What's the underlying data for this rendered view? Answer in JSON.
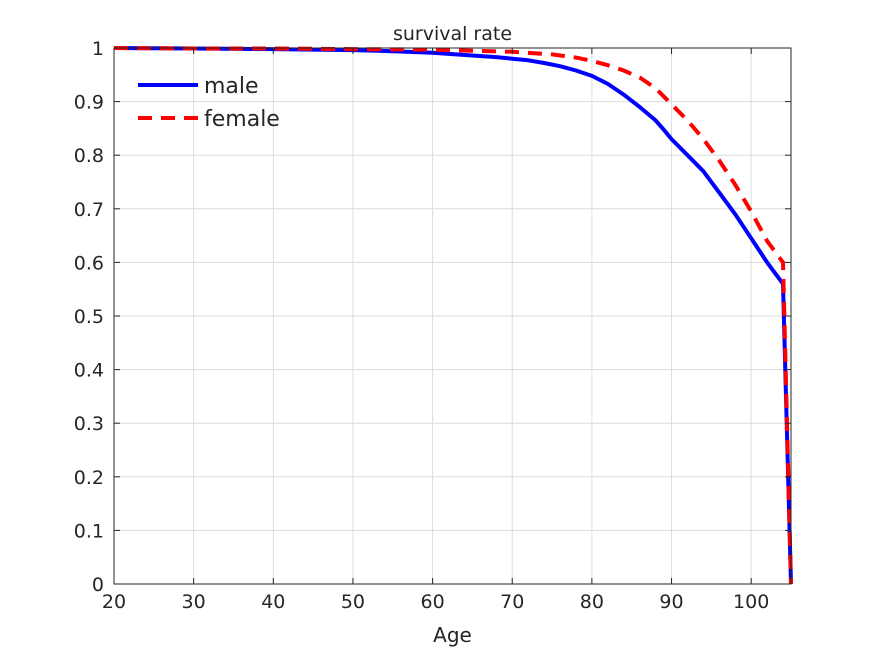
{
  "chart_data": {
    "type": "line",
    "title": "survival rate",
    "xlabel": "Age",
    "ylabel": "",
    "xlim": [
      20,
      105
    ],
    "ylim": [
      0,
      1
    ],
    "xticks": [
      20,
      30,
      40,
      50,
      60,
      70,
      80,
      90,
      100
    ],
    "yticks": [
      0,
      0.1,
      0.2,
      0.3,
      0.4,
      0.5,
      0.6,
      0.7,
      0.8,
      0.9,
      1
    ],
    "grid": true,
    "legend_position": "top-left",
    "series": [
      {
        "name": "male",
        "color": "#0000ff",
        "style": "solid",
        "x": [
          20,
          30,
          40,
          45,
          50,
          55,
          60,
          62,
          65,
          68,
          70,
          72,
          74,
          76,
          78,
          80,
          82,
          84,
          86,
          88,
          89,
          90,
          92,
          94,
          96,
          98,
          100,
          102,
          104,
          105
        ],
        "y": [
          1.0,
          0.999,
          0.998,
          0.997,
          0.996,
          0.994,
          0.991,
          0.989,
          0.986,
          0.983,
          0.98,
          0.977,
          0.972,
          0.966,
          0.958,
          0.948,
          0.933,
          0.913,
          0.89,
          0.865,
          0.848,
          0.83,
          0.8,
          0.77,
          0.73,
          0.69,
          0.645,
          0.6,
          0.56,
          0.0
        ]
      },
      {
        "name": "female",
        "color": "#ff0000",
        "style": "dashed",
        "x": [
          20,
          30,
          40,
          50,
          60,
          65,
          70,
          75,
          78,
          80,
          82,
          84,
          86,
          88,
          90,
          92,
          94,
          96,
          98,
          100,
          102,
          104,
          105
        ],
        "y": [
          1.0,
          0.999,
          0.999,
          0.998,
          0.997,
          0.995,
          0.993,
          0.988,
          0.982,
          0.976,
          0.968,
          0.958,
          0.945,
          0.925,
          0.895,
          0.865,
          0.83,
          0.79,
          0.745,
          0.695,
          0.64,
          0.6,
          0.0
        ]
      }
    ]
  }
}
